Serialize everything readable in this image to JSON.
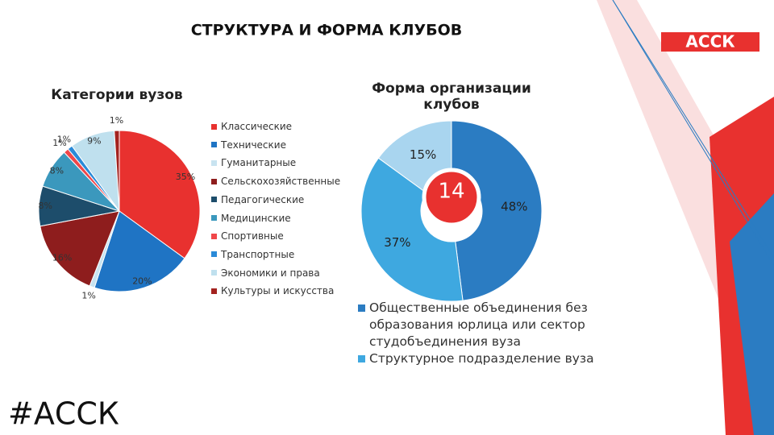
{
  "title": "СТРУКТУРА И ФОРМА КЛУБОВ",
  "hashtag": "#АССК",
  "logo": "АССК",
  "chart_data": [
    {
      "type": "pie",
      "title": "Категории вузов",
      "categories": [
        "Классические",
        "Технические",
        "Гуманитарные",
        "Сельскохозяйственные",
        "Педагогические",
        "Медицинские",
        "Спортивные",
        "Транспортные",
        "Экономики и права",
        "Культуры и искусства"
      ],
      "values": [
        35,
        20,
        1,
        16,
        8,
        8,
        1,
        1,
        9,
        1
      ],
      "value_labels": [
        "35%",
        "20%",
        "1%",
        "16%",
        "8%",
        "8%",
        "1%",
        "1%",
        "9%",
        "1%"
      ],
      "colors": [
        "#e8312f",
        "#1f74c4",
        "#c8e3f0",
        "#8e1d1d",
        "#1d4d6b",
        "#3b98bd",
        "#f0474a",
        "#2a8ad8",
        "#bfe0ee",
        "#a3221f"
      ]
    },
    {
      "type": "donut",
      "title": "Форма организации клубов",
      "categories": [
        "Общественные объединения без образования юрлица или сектор студобъединения вуза",
        "Структурное подразделение вуза",
        null
      ],
      "values": [
        48,
        37,
        15
      ],
      "value_labels": [
        "48%",
        "37%",
        "15%"
      ],
      "colors": [
        "#2b7cc2",
        "#3ea8e0",
        "#a9d5ef"
      ],
      "center_value": 14
    }
  ]
}
